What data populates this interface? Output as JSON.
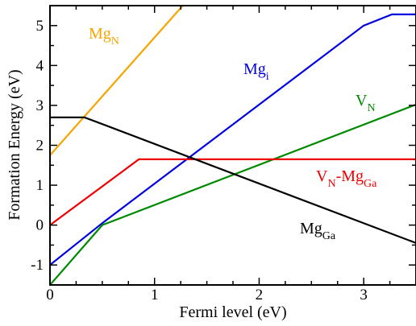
{
  "chart_data": {
    "type": "line",
    "title": "",
    "xlabel": "Fermi level (eV)",
    "ylabel": "Formation Energy (eV)",
    "xlim": [
      0,
      3.5
    ],
    "ylim": [
      -1.5,
      5.5
    ],
    "xticks": [
      0,
      1,
      2,
      3
    ],
    "yticks": [
      -1,
      0,
      1,
      2,
      3,
      4,
      5
    ],
    "xtick_labels": [
      "0",
      "1",
      "2",
      "3"
    ],
    "ytick_labels": [
      "-1",
      "0",
      "1",
      "2",
      "3",
      "4",
      "5"
    ],
    "grid": false,
    "legend": "none",
    "series": [
      {
        "label": {
          "main": "Mg",
          "sub": "N"
        },
        "color": "#f5a500",
        "points": [
          [
            0,
            1.75
          ],
          [
            1.27,
            5.5
          ]
        ]
      },
      {
        "label": {
          "main": "Mg",
          "sub": "i"
        },
        "color": "#0000e0",
        "points": [
          [
            0,
            -1.0
          ],
          [
            0.5,
            0.05
          ],
          [
            3.0,
            5.0
          ],
          [
            3.27,
            5.28
          ],
          [
            3.5,
            5.28
          ]
        ]
      },
      {
        "label": {
          "main": "V",
          "sub": "N"
        },
        "color": "#008a00",
        "points": [
          [
            0,
            -1.5
          ],
          [
            0.5,
            0.0
          ],
          [
            3.5,
            3.02
          ]
        ]
      },
      {
        "label": {
          "main": "V",
          "sub": "N",
          "mid": "-Mg",
          "sub2": "Ga"
        },
        "color": "#ee0000",
        "points": [
          [
            0,
            0.0
          ],
          [
            0.85,
            1.65
          ],
          [
            3.5,
            1.65
          ]
        ]
      },
      {
        "label": {
          "main": "Mg",
          "sub": "Ga"
        },
        "color": "#000000",
        "points": [
          [
            0,
            2.7
          ],
          [
            0.33,
            2.7
          ],
          [
            3.5,
            -0.45
          ]
        ]
      }
    ]
  }
}
